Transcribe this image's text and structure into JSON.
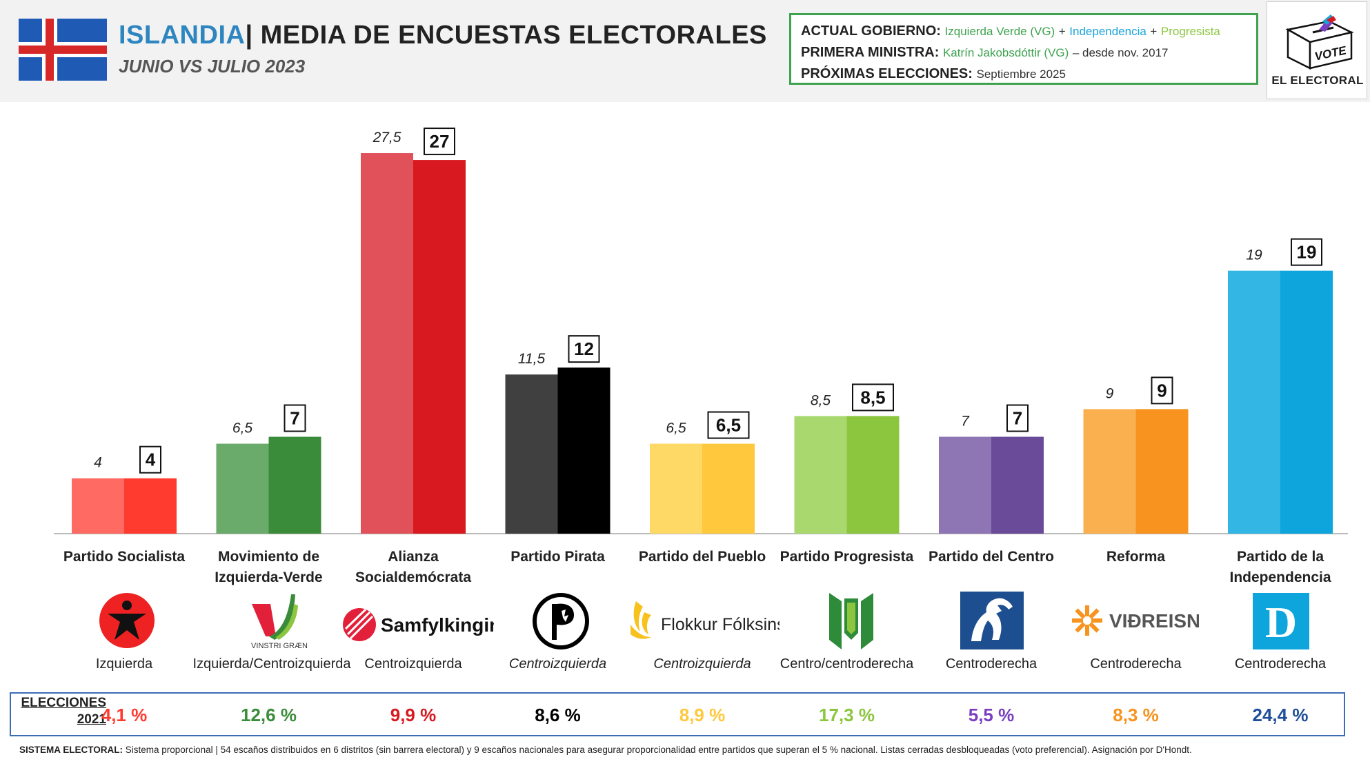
{
  "header": {
    "country": "ISLANDIA",
    "title": "| MEDIA DE ENCUESTAS ELECTORALES",
    "subtitle": "JUNIO VS JULIO 2023"
  },
  "government": {
    "gov_label": "ACTUAL GOBIERNO:",
    "gov_parties": [
      "Izquierda Verde (VG)",
      "Independencia",
      "Progresista"
    ],
    "plus": "+",
    "pm_label": "PRIMERA MINISTRA:",
    "pm_name": "Katrín Jakobsdóttir (VG)",
    "pm_since": "– desde nov. 2017",
    "next_label": "PRÓXIMAS ELECCIONES:",
    "next_date": "Septiembre 2025"
  },
  "logo": {
    "vote": "VOTE",
    "name": "EL ELECTORAL"
  },
  "chart_data": {
    "type": "bar",
    "categories": [
      "Partido Socialista",
      "Movimiento de Izquierda-Verde",
      "Alianza Socialdemócrata",
      "Partido Pirata",
      "Partido del Pueblo",
      "Partido Progresista",
      "Partido del Centro",
      "Reforma",
      "Partido de la Independencia"
    ],
    "series": [
      {
        "values": [
          4,
          6.5,
          27.5,
          11.5,
          6.5,
          8.5,
          7,
          9,
          19
        ],
        "labels": [
          "4",
          "6,5",
          "27,5",
          "11,5",
          "6,5",
          "8,5",
          "7",
          "9",
          "19"
        ]
      },
      {
        "values": [
          4,
          7,
          27,
          12,
          6.5,
          8.5,
          7,
          9,
          19
        ],
        "labels": [
          "4",
          "7",
          "27",
          "12",
          "6,5",
          "8,5",
          "7",
          "9",
          "19"
        ]
      }
    ],
    "colors_june": [
      "#ff6b63",
      "#6aaa6a",
      "#e0515a",
      "#404040",
      "#ffd966",
      "#a9d86e",
      "#8e76b4",
      "#fbb050",
      "#33b6e4"
    ],
    "colors_july": [
      "#ff3b30",
      "#3a8c3a",
      "#d81920",
      "#000000",
      "#ffc83d",
      "#8cc63f",
      "#6a4b9a",
      "#f7931e",
      "#0ea5dc"
    ],
    "ylim": [
      0,
      28
    ]
  },
  "party_labels": [
    [
      "Partido Socialista"
    ],
    [
      "Movimiento de",
      "Izquierda-Verde"
    ],
    [
      "Alianza",
      "Socialdemócrata"
    ],
    [
      "Partido Pirata"
    ],
    [
      "Partido del Pueblo"
    ],
    [
      "Partido Progresista"
    ],
    [
      "Partido del Centro"
    ],
    [
      "Reforma"
    ],
    [
      "Partido de la",
      "Independencia"
    ]
  ],
  "logos": {
    "vg": "VINSTRI GRÆN",
    "samfylkingin": "Samfylkingin",
    "flokkur": "Flokkur Fólksins",
    "vidreisn": "VIÐREISN",
    "d": "D"
  },
  "ideologies": [
    "Izquierda",
    "Izquierda/Centroizquierda",
    "Centroizquierda",
    "Centroizquierda",
    "Centroizquierda",
    "Centro/centroderecha",
    "Centroderecha",
    "Centroderecha",
    "Centroderecha"
  ],
  "elections": {
    "label_line1": "ELECCIONES",
    "label_line2": "2021",
    "values": [
      "4,1 %",
      "12,6 %",
      "9,9 %",
      "8,6 %",
      "8,9 %",
      "17,3 %",
      "5,5 %",
      "8,3 %",
      "24,4 %"
    ],
    "colors": [
      "#ff3b30",
      "#3a8c3a",
      "#d81920",
      "#000000",
      "#ffc83d",
      "#8cc63f",
      "#7a3fc0",
      "#f7931e",
      "#1f4e9a"
    ]
  },
  "footnote": {
    "label": "SISTEMA ELECTORAL:",
    "text": " Sistema proporcional | 54 escaños distribuidos en 6 distritos (sin barrera electoral) y 9 escaños nacionales para asegurar proporcionalidad entre partidos que superan el 5 % nacional. Listas cerradas desbloqueadas (voto preferencial). Asignación por D'Hondt."
  }
}
